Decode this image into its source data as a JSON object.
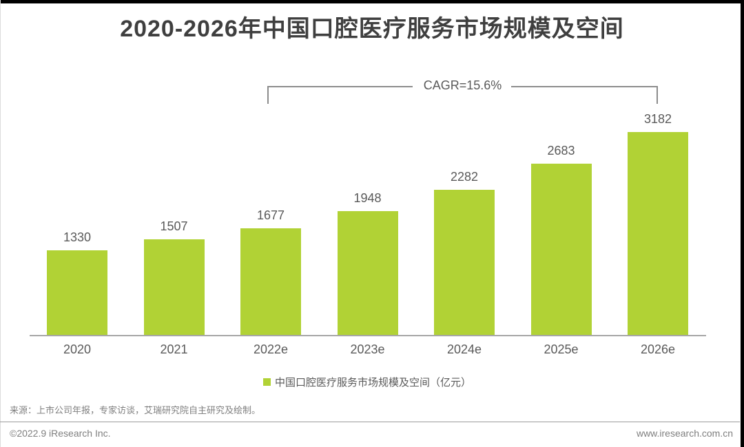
{
  "title": "2020-2026年中国口腔医疗服务市场规模及空间",
  "annotation": {
    "cagr_label": "CAGR=15.6%"
  },
  "chart_data": {
    "type": "bar",
    "categories": [
      "2020",
      "2021",
      "2022e",
      "2023e",
      "2024e",
      "2025e",
      "2026e"
    ],
    "values": [
      1330,
      1507,
      1677,
      1948,
      2282,
      2683,
      3182
    ],
    "title": "2020-2026年中国口腔医疗服务市场规模及空间",
    "xlabel": "",
    "ylabel": "亿元",
    "ylim": [
      0,
      3400
    ],
    "grid": false,
    "legend_position": "bottom",
    "annotations": [
      "CAGR=15.6%"
    ],
    "bar_color": "#b1d235"
  },
  "legend": {
    "label": "中国口腔医疗服务市场规模及空间（亿元）",
    "swatch_color": "#b1d235"
  },
  "source": "来源：上市公司年报，专家访谈，艾瑞研究院自主研究及绘制。",
  "footer": {
    "left": "©2022.9 iResearch Inc.",
    "right": "www.iresearch.com.cn"
  },
  "colors": {
    "bar": "#b1d235",
    "title": "#3f3f3f",
    "label": "#595959",
    "muted": "#7f7f7f",
    "axis": "#a6a6a6",
    "bracket": "#8c8c8c"
  }
}
